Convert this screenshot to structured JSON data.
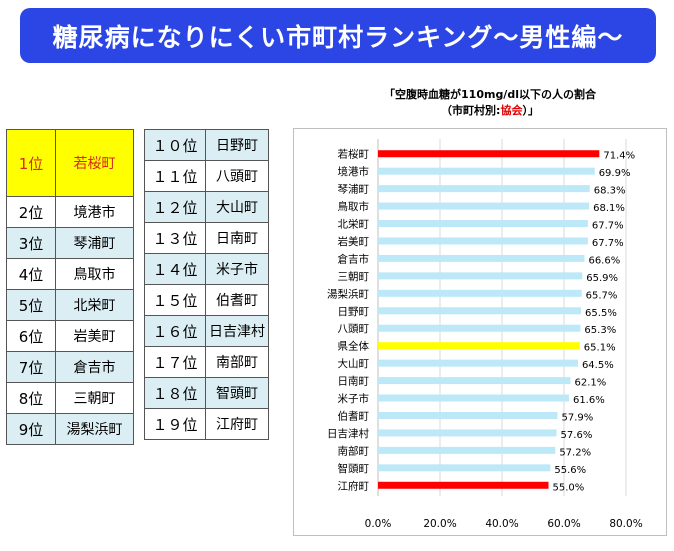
{
  "banner": {
    "title": "糖尿病になりにくい市町村ランキング～男性編～"
  },
  "ranking_left": [
    {
      "rank": "1位",
      "town": "若桜町",
      "style": "first"
    },
    {
      "rank": "2位",
      "town": "境港市",
      "style": "white"
    },
    {
      "rank": "3位",
      "town": "琴浦町",
      "style": "shade"
    },
    {
      "rank": "4位",
      "town": "鳥取市",
      "style": "white"
    },
    {
      "rank": "5位",
      "town": "北栄町",
      "style": "shade"
    },
    {
      "rank": "6位",
      "town": "岩美町",
      "style": "white"
    },
    {
      "rank": "7位",
      "town": "倉吉市",
      "style": "shade"
    },
    {
      "rank": "8位",
      "town": "三朝町",
      "style": "white"
    },
    {
      "rank": "9位",
      "town": "湯梨浜町",
      "style": "shade"
    }
  ],
  "ranking_right": [
    {
      "rank": "１０位",
      "town": "日野町",
      "style": "shade"
    },
    {
      "rank": "１１位",
      "town": "八頭町",
      "style": "white"
    },
    {
      "rank": "１２位",
      "town": "大山町",
      "style": "shade"
    },
    {
      "rank": "１３位",
      "town": "日南町",
      "style": "white"
    },
    {
      "rank": "１４位",
      "town": "米子市",
      "style": "shade"
    },
    {
      "rank": "１５位",
      "town": "伯耆町",
      "style": "white"
    },
    {
      "rank": "１６位",
      "town": "日吉津村",
      "style": "shade"
    },
    {
      "rank": "１７位",
      "town": "南部町",
      "style": "white"
    },
    {
      "rank": "１８位",
      "town": "智頭町",
      "style": "shade"
    },
    {
      "rank": "１９位",
      "town": "江府町",
      "style": "white"
    }
  ],
  "chart_title": {
    "line1": "「空腹時血糖が110mg/dl以下の人の割合",
    "line2_prefix": "（市町村別:",
    "line2_highlight": "協会",
    "line2_suffix": "）」"
  },
  "chart_data": {
    "type": "bar",
    "orientation": "horizontal",
    "categories": [
      "若桜町",
      "境港市",
      "琴浦町",
      "鳥取市",
      "北栄町",
      "岩美町",
      "倉吉市",
      "三朝町",
      "湯梨浜町",
      "日野町",
      "八頭町",
      "県全体",
      "大山町",
      "日南町",
      "米子市",
      "伯耆町",
      "日吉津村",
      "南部町",
      "智頭町",
      "江府町"
    ],
    "values": [
      71.4,
      69.9,
      68.3,
      68.1,
      67.7,
      67.7,
      66.6,
      65.9,
      65.7,
      65.5,
      65.3,
      65.1,
      64.5,
      62.1,
      61.6,
      57.9,
      57.6,
      57.2,
      55.6,
      55.0
    ],
    "value_labels": [
      "71.4%",
      "69.9%",
      "68.3%",
      "68.1%",
      "67.7%",
      "67.7%",
      "66.6%",
      "65.9%",
      "65.7%",
      "65.5%",
      "65.3%",
      "65.1%",
      "64.5%",
      "62.1%",
      "61.6%",
      "57.9%",
      "57.6%",
      "57.2%",
      "55.6%",
      "55.0%"
    ],
    "bar_colors": [
      "#ff0000",
      "#bde8f7",
      "#bde8f7",
      "#bde8f7",
      "#bde8f7",
      "#bde8f7",
      "#bde8f7",
      "#bde8f7",
      "#bde8f7",
      "#bde8f7",
      "#bde8f7",
      "#ffff00",
      "#bde8f7",
      "#bde8f7",
      "#bde8f7",
      "#bde8f7",
      "#bde8f7",
      "#bde8f7",
      "#bde8f7",
      "#ff0000"
    ],
    "xlim": [
      0,
      80
    ],
    "xticks": [
      0,
      20,
      40,
      60,
      80
    ],
    "xtick_labels": [
      "0.0%",
      "20.0%",
      "40.0%",
      "60.0%",
      "80.0%"
    ],
    "grid": "vertical"
  }
}
